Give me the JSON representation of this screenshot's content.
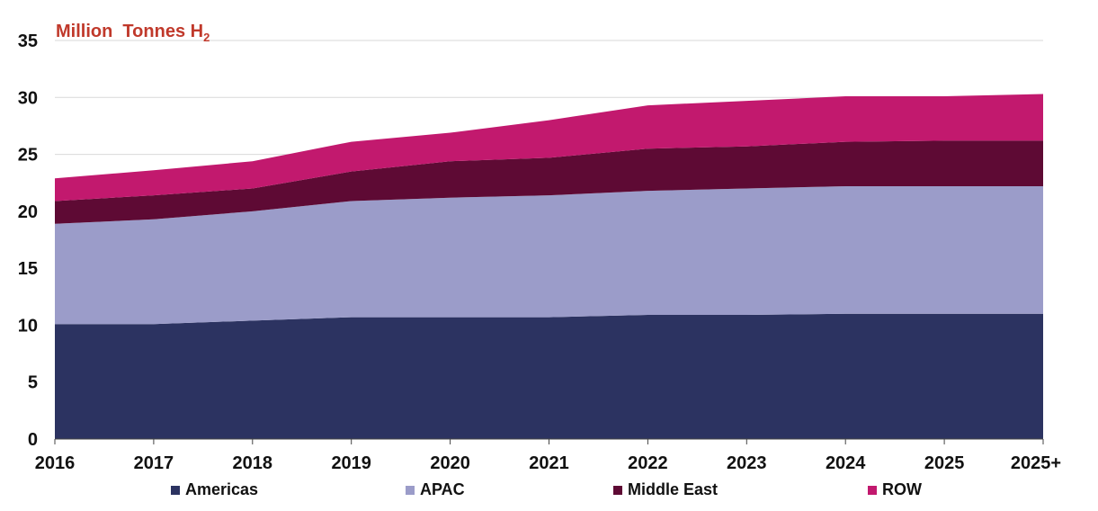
{
  "chart_data": {
    "type": "area",
    "stacked": true,
    "title": "Million  Tonnes H",
    "title_subscript": "2",
    "categories": [
      "2016",
      "2017",
      "2018",
      "2019",
      "2020",
      "2021",
      "2022",
      "2023",
      "2024",
      "2025",
      "2025+"
    ],
    "ylim": [
      0,
      35
    ],
    "yticks": [
      0,
      5,
      10,
      15,
      20,
      25,
      30,
      35
    ],
    "grid": true,
    "legend_position": "bottom",
    "series": [
      {
        "name": "Americas",
        "color": "#2c3361",
        "values": [
          10.1,
          10.1,
          10.4,
          10.7,
          10.7,
          10.7,
          10.9,
          10.9,
          11.0,
          11.0,
          11.0
        ]
      },
      {
        "name": "APAC",
        "color": "#9b9cc9",
        "values": [
          8.8,
          9.2,
          9.6,
          10.2,
          10.5,
          10.7,
          10.9,
          11.1,
          11.2,
          11.2,
          11.2
        ]
      },
      {
        "name": "Middle East",
        "color": "#5e0a34",
        "values": [
          2.0,
          2.1,
          2.0,
          2.6,
          3.2,
          3.3,
          3.7,
          3.7,
          3.9,
          4.0,
          4.0
        ]
      },
      {
        "name": "ROW",
        "color": "#c2196e",
        "values": [
          2.0,
          2.2,
          2.4,
          2.6,
          2.5,
          3.3,
          3.8,
          4.0,
          4.0,
          3.9,
          4.1
        ]
      }
    ]
  }
}
